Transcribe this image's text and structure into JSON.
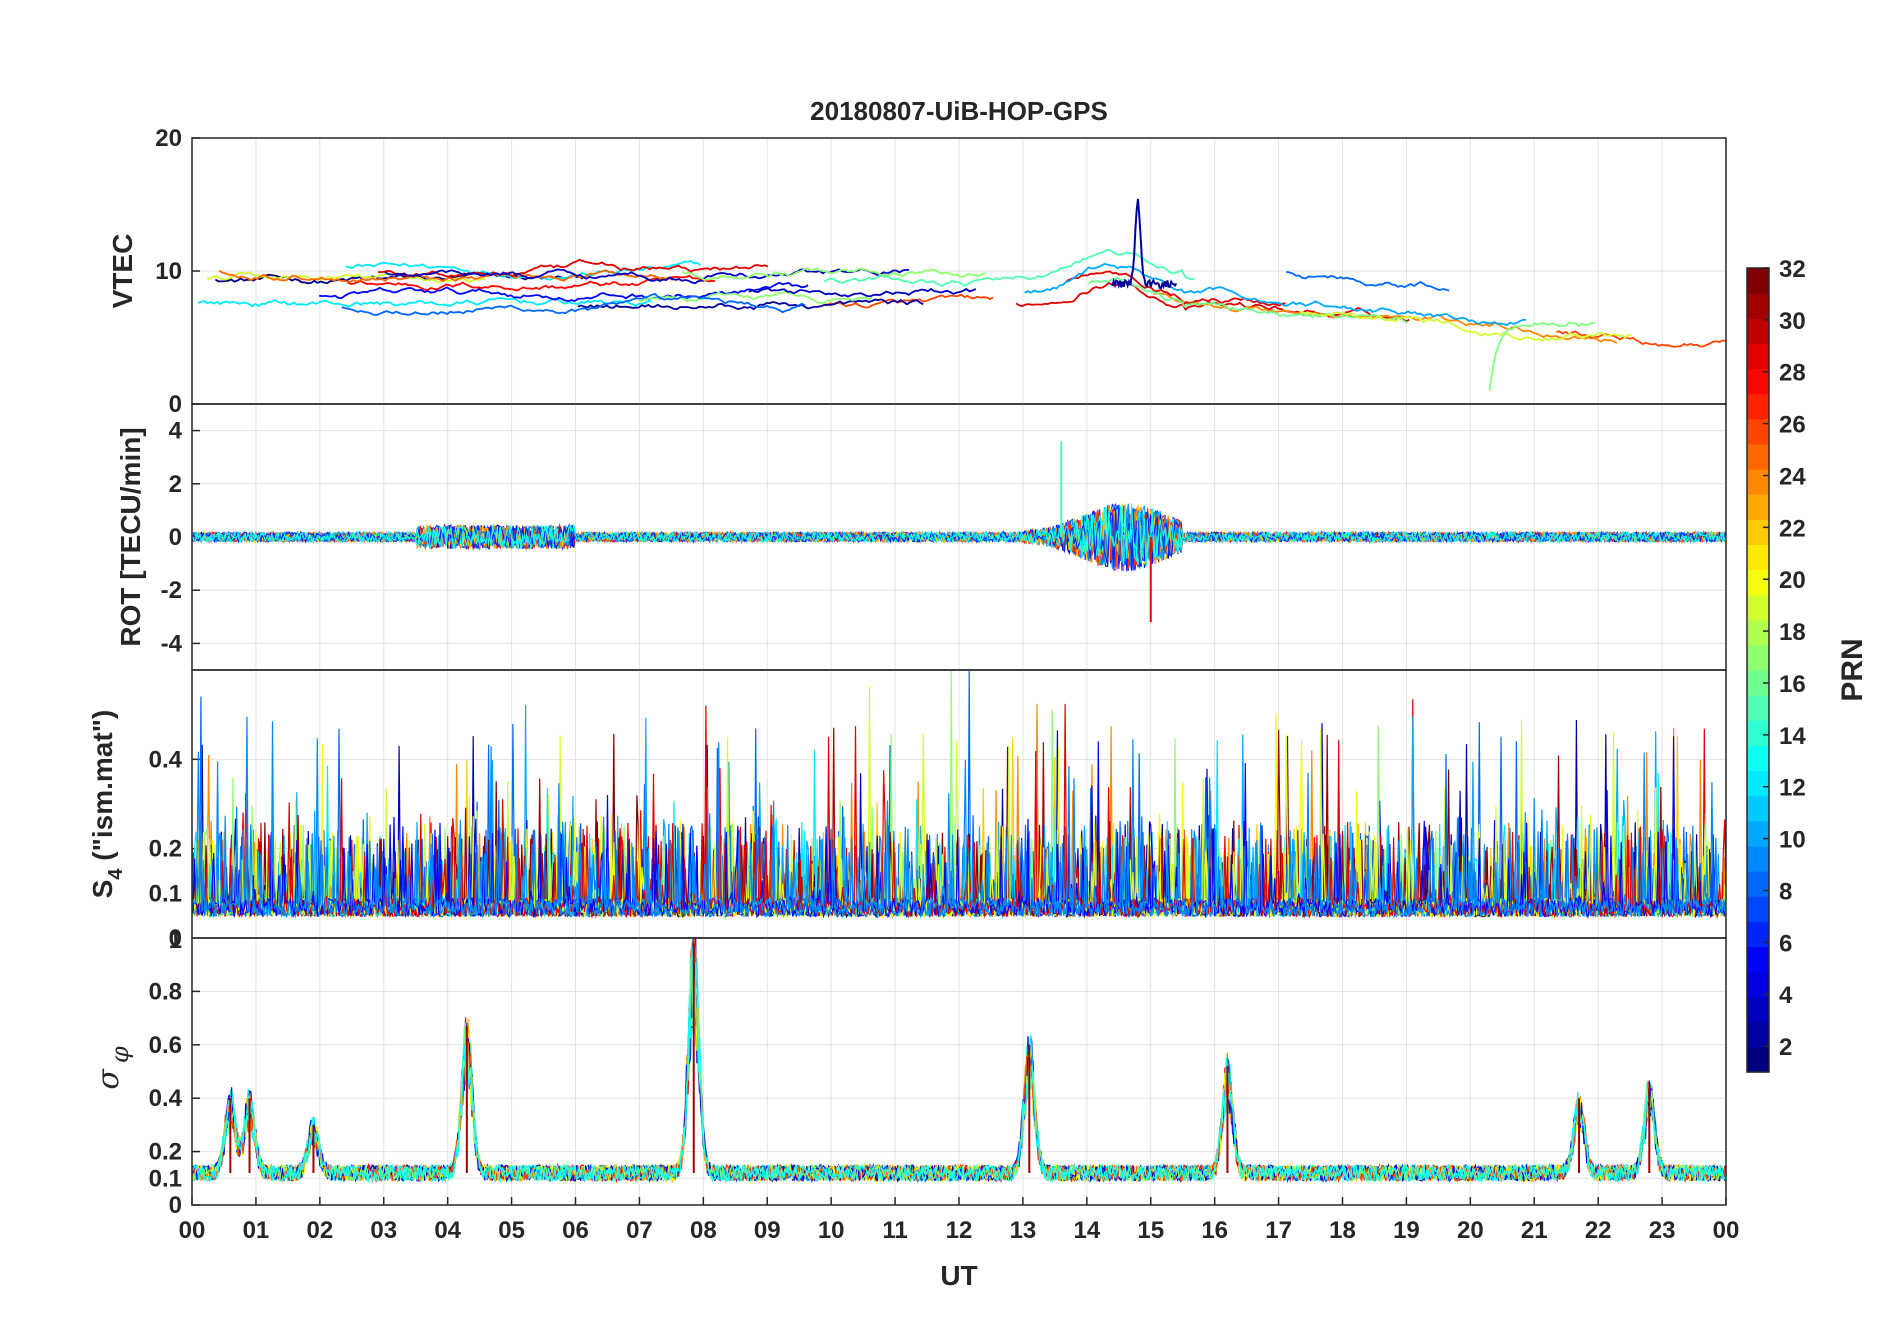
{
  "chart_data": {
    "type": "line",
    "title": "20180807-UiB-HOP-GPS",
    "xlabel": "UT",
    "x_range_hours": [
      0,
      24
    ],
    "x_tick_labels": [
      "00",
      "01",
      "02",
      "03",
      "04",
      "05",
      "06",
      "07",
      "08",
      "09",
      "10",
      "11",
      "12",
      "13",
      "14",
      "15",
      "16",
      "17",
      "18",
      "19",
      "20",
      "21",
      "22",
      "23",
      "00"
    ],
    "series_color_by": "PRN",
    "colorbar": {
      "label": "PRN",
      "range": [
        1,
        32
      ],
      "tick_labels": [
        "2",
        "4",
        "6",
        "8",
        "10",
        "12",
        "14",
        "16",
        "18",
        "20",
        "22",
        "24",
        "26",
        "28",
        "30",
        "32"
      ],
      "colormap": "jet"
    },
    "panels": [
      {
        "name": "vtec",
        "ylabel": "VTEC",
        "ylim": [
          0,
          20
        ],
        "ytick_labels": [
          "0",
          "10",
          "20"
        ],
        "description_values": {
          "typical_range": [
            6,
            11
          ],
          "peak_value": 15.2,
          "peak_time_hours": 14.8,
          "min_value": 1.0,
          "min_time_hours": 20.3
        }
      },
      {
        "name": "rot",
        "ylabel": "ROT [TECU/min]",
        "ylim": [
          -5,
          5
        ],
        "ytick_labels": [
          "-4",
          "-2",
          "0",
          "2",
          "4"
        ],
        "description_values": {
          "max_value": 3.6,
          "max_time_hours": 13.6,
          "min_value": -3.2,
          "min_time_hours": 15.0
        }
      },
      {
        "name": "s4",
        "ylabel_main": "S",
        "ylabel_sub": "4",
        "ylabel_rest": " (\"ism.mat\")",
        "ylim": [
          0.0,
          0.6
        ],
        "ytick_labels": [
          "0.1",
          "0.2",
          "0.4"
        ],
        "bottom_label": "0",
        "description_values": {
          "baseline": 0.08,
          "max_value": 0.6
        }
      },
      {
        "name": "sigma_phi",
        "ylabel_symbol": "σ",
        "ylabel_sub": "φ",
        "ylim": [
          0,
          1
        ],
        "ytick_labels": [
          "0",
          "0.1",
          "0.2",
          "0.4",
          "0.6",
          "0.8"
        ],
        "top_label": "1",
        "peaks": [
          {
            "t": 0.6,
            "v": 0.4
          },
          {
            "t": 0.9,
            "v": 0.4
          },
          {
            "t": 1.9,
            "v": 0.3
          },
          {
            "t": 4.3,
            "v": 0.67
          },
          {
            "t": 7.85,
            "v": 0.98
          },
          {
            "t": 13.1,
            "v": 0.6
          },
          {
            "t": 16.2,
            "v": 0.52
          },
          {
            "t": 21.7,
            "v": 0.4
          },
          {
            "t": 22.8,
            "v": 0.44
          }
        ],
        "description_values": {
          "baseline": 0.12
        }
      }
    ]
  }
}
